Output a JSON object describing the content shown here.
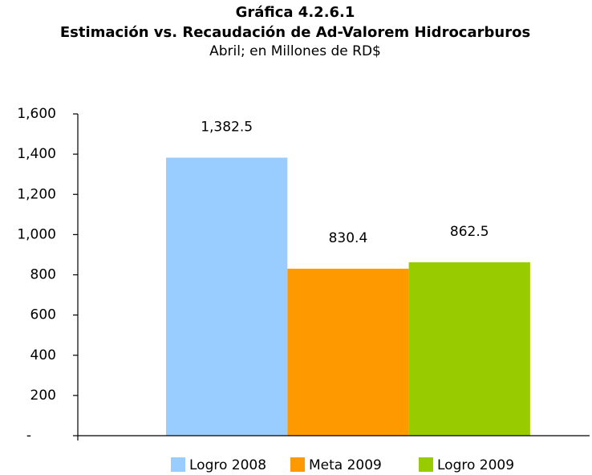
{
  "chart_data": {
    "type": "bar",
    "title": "Gráfica 4.2.6.1",
    "subtitle": "Estimación vs. Recaudación de Ad-Valorem Hidrocarburos",
    "note": "Abril; en Millones de RD$",
    "categories": [
      null
    ],
    "series": [
      {
        "name": "Logro 2008",
        "color": "#99ccff",
        "values": [
          1382.5
        ],
        "value_labels": [
          "1,382.5"
        ]
      },
      {
        "name": "Meta 2009",
        "color": "#ff9900",
        "values": [
          830.4
        ],
        "value_labels": [
          "830.4"
        ]
      },
      {
        "name": "Logro 2009",
        "color": "#99cc00",
        "values": [
          862.5
        ],
        "value_labels": [
          "862.5"
        ]
      }
    ],
    "ylim": [
      0,
      1600
    ],
    "yticks": [
      {
        "value": 0,
        "label": "-"
      },
      200,
      400,
      600,
      800,
      {
        "value": 1000,
        "label": "1,000"
      },
      {
        "value": 1200,
        "label": "1,200"
      },
      {
        "value": 1400,
        "label": "1,400"
      },
      {
        "value": 1600,
        "label": "1,600"
      }
    ],
    "grid": false,
    "legend": "bottom"
  }
}
